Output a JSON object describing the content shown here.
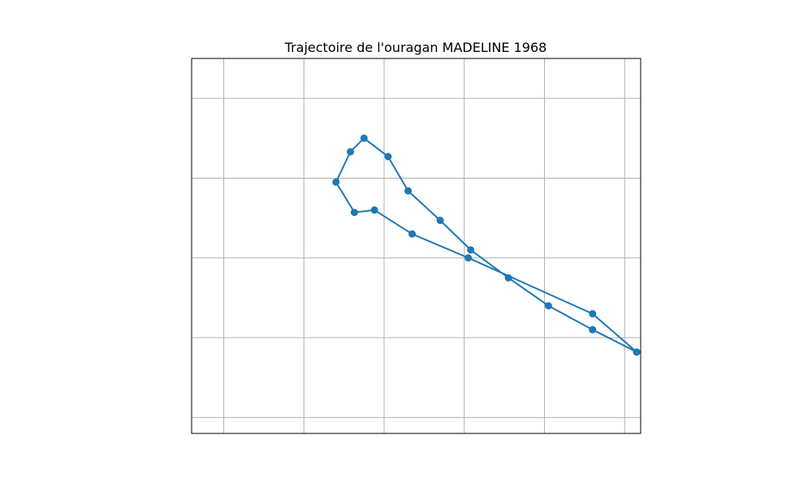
{
  "chart_data": {
    "type": "line",
    "title": "Trajectoire de l'ouragan MADELINE 1968",
    "xlabel": "",
    "ylabel": "",
    "grid": true,
    "markers": true,
    "xlim": [
      -2.4,
      3.2
    ],
    "ylim": [
      -2.2,
      2.5
    ],
    "xticks": [
      -2,
      -1,
      0,
      1,
      2,
      3
    ],
    "yticks": [
      -2,
      -1,
      0,
      1,
      2
    ],
    "series": [
      {
        "x": [
          3.15,
          2.6,
          2.05,
          1.55,
          1.08,
          0.7,
          0.3,
          0.05,
          -0.25,
          -0.42,
          -0.6,
          -0.37,
          -0.12,
          0.35,
          1.05,
          2.6,
          3.15
        ],
        "y": [
          -1.18,
          -0.9,
          -0.6,
          -0.25,
          0.1,
          0.47,
          0.84,
          1.27,
          1.5,
          1.33,
          0.95,
          0.57,
          0.6,
          0.3,
          0.0,
          -0.7,
          -1.18
        ]
      }
    ],
    "colors": {
      "line": "#1f77b4",
      "grid": "#b0b0b0",
      "axes": "#000000"
    }
  }
}
